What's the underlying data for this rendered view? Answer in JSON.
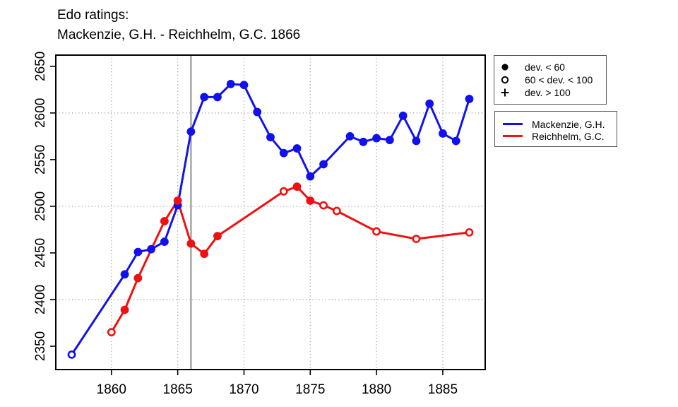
{
  "header": {
    "title_line1": "Edo ratings:",
    "title_line2": "Mackenzie, G.H. - Reichhelm, G.C. 1866"
  },
  "chart_data": {
    "type": "line",
    "title": "Edo ratings:",
    "subtitle": "Mackenzie, G.H. - Reichhelm, G.C. 1866",
    "xlabel": "",
    "ylabel": "",
    "x_ticks": [
      1860,
      1865,
      1870,
      1875,
      1880,
      1885
    ],
    "y_ticks": [
      2350,
      2400,
      2450,
      2500,
      2550,
      2600,
      2650
    ],
    "x_range": [
      1855.8,
      1888.2
    ],
    "y_range": [
      2325,
      2662
    ],
    "grid": {
      "vertical_dotted_at": [
        1860,
        1865,
        1870,
        1875,
        1880,
        1885
      ],
      "horizontal_dotted_at": [
        2400,
        2500,
        2600
      ],
      "style": "dotted",
      "color": "#9a9a9a"
    },
    "match_year_line": {
      "x": 1866,
      "color": "#808080"
    },
    "frame_color": "#000000",
    "marker_legend": {
      "items": [
        {
          "symbol": "filled-circle",
          "label": "dev. < 60"
        },
        {
          "symbol": "open-circle",
          "label": "60 < dev. < 100"
        },
        {
          "symbol": "plus",
          "label": "dev. > 100"
        }
      ]
    },
    "series": [
      {
        "name": "Mackenzie, G.H.",
        "color": "#1111ee",
        "points": [
          [
            1857,
            2341,
            "open"
          ],
          [
            1861,
            2427,
            "filled"
          ],
          [
            1862,
            2451,
            "filled"
          ],
          [
            1863,
            2454,
            "filled"
          ],
          [
            1864,
            2462,
            "filled"
          ],
          [
            1865,
            2501,
            "filled"
          ],
          [
            1866,
            2580,
            "filled"
          ],
          [
            1867,
            2617,
            "filled"
          ],
          [
            1868,
            2617,
            "filled"
          ],
          [
            1869,
            2631,
            "filled"
          ],
          [
            1870,
            2630,
            "filled"
          ],
          [
            1871,
            2601,
            "filled"
          ],
          [
            1872,
            2574,
            "filled"
          ],
          [
            1873,
            2557,
            "filled"
          ],
          [
            1874,
            2562,
            "filled"
          ],
          [
            1875,
            2532,
            "filled"
          ],
          [
            1876,
            2545,
            "filled"
          ],
          [
            1878,
            2575,
            "filled"
          ],
          [
            1879,
            2569,
            "filled"
          ],
          [
            1880,
            2573,
            "filled"
          ],
          [
            1881,
            2571,
            "filled"
          ],
          [
            1882,
            2597,
            "filled"
          ],
          [
            1883,
            2570,
            "filled"
          ],
          [
            1884,
            2610,
            "filled"
          ],
          [
            1885,
            2578,
            "filled"
          ],
          [
            1886,
            2570,
            "filled"
          ],
          [
            1887,
            2615,
            "filled"
          ]
        ]
      },
      {
        "name": "Reichhelm, G.C.",
        "color": "#ee1111",
        "points": [
          [
            1860,
            2365,
            "open"
          ],
          [
            1861,
            2389,
            "filled"
          ],
          [
            1862,
            2423,
            "filled"
          ],
          [
            1864,
            2484,
            "filled"
          ],
          [
            1865,
            2506,
            "filled"
          ],
          [
            1866,
            2460,
            "filled"
          ],
          [
            1867,
            2449,
            "filled"
          ],
          [
            1868,
            2468,
            "filled"
          ],
          [
            1873,
            2516,
            "open"
          ],
          [
            1874,
            2521,
            "filled"
          ],
          [
            1875,
            2506,
            "filled"
          ],
          [
            1876,
            2501,
            "open"
          ],
          [
            1877,
            2495,
            "open"
          ],
          [
            1880,
            2473,
            "open"
          ],
          [
            1883,
            2465,
            "open"
          ],
          [
            1887,
            2472,
            "open"
          ]
        ]
      }
    ]
  }
}
